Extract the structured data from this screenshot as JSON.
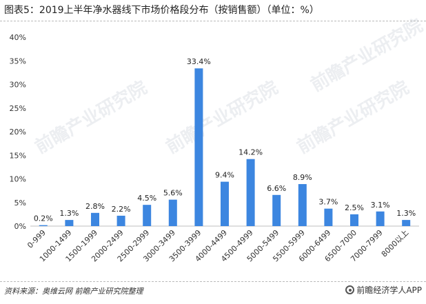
{
  "title": "图表5：2019上半年净水器线下市场价格段分布（按销售额）（单位：%）",
  "source": "资料来源：奥维云网 前瞻产业研究院整理",
  "logo_text": "前瞻经济学人APP",
  "watermark": "前瞻产业研究院",
  "colors": {
    "bar": "#3c86e0",
    "axis": "#bfbfbf",
    "grid": "#e0e0e0"
  },
  "chart_data": {
    "type": "bar",
    "title": "图表5：2019上半年净水器线下市场价格段分布（按销售额）（单位：%）",
    "xlabel": "",
    "ylabel": "",
    "ylim": [
      0,
      40
    ],
    "yticks": [
      "0%",
      "5%",
      "10%",
      "15%",
      "20%",
      "25%",
      "30%",
      "35%",
      "40%"
    ],
    "categories": [
      "0-999",
      "1000-1499",
      "1500-1999",
      "2000-2499",
      "2500-2999",
      "3000-3499",
      "3500-3999",
      "4000-4499",
      "4500-4999",
      "5000-5499",
      "5500-5999",
      "6000-6499",
      "6500-7000",
      "7000-7999",
      "8000以上"
    ],
    "values": [
      0.2,
      1.3,
      2.8,
      2.2,
      4.5,
      5.6,
      33.4,
      9.4,
      14.2,
      6.6,
      8.9,
      3.7,
      2.5,
      3.1,
      1.3
    ],
    "labels": [
      "0.2%",
      "1.3%",
      "2.8%",
      "2.2%",
      "4.5%",
      "5.6%",
      "33.4%",
      "9.4%",
      "14.2%",
      "6.6%",
      "8.9%",
      "3.7%",
      "2.5%",
      "3.1%",
      "1.3%"
    ],
    "grid": false,
    "legend": "none"
  }
}
